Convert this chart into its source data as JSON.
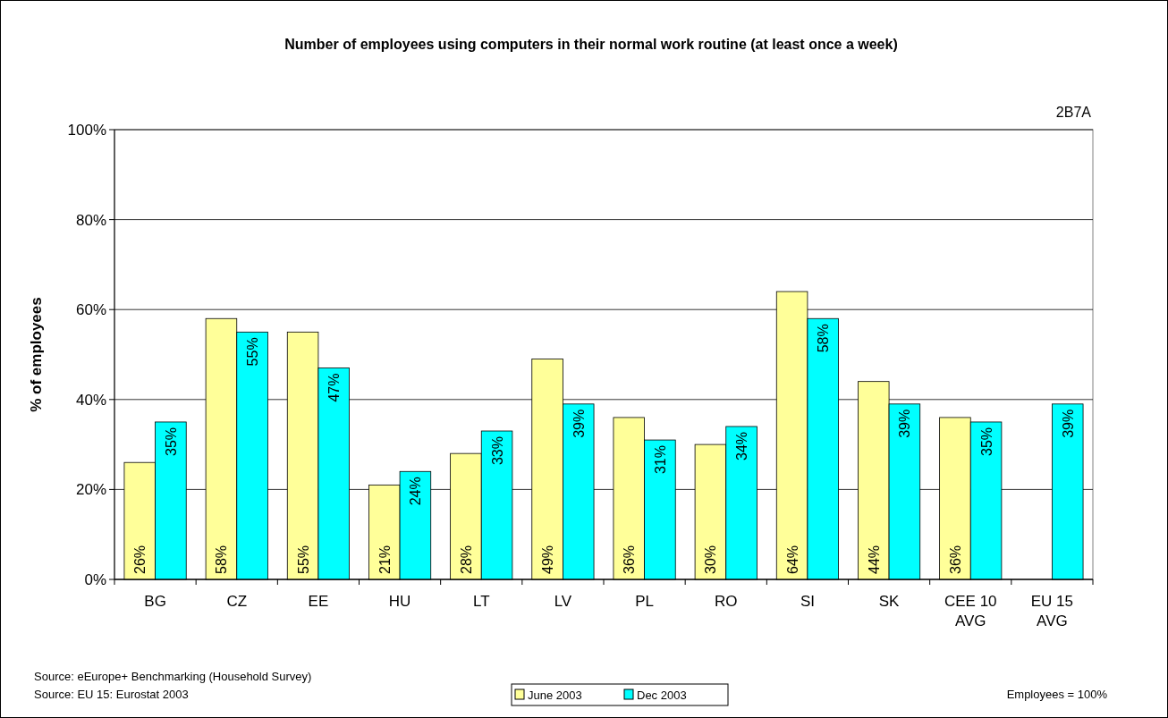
{
  "chart_data": {
    "type": "bar",
    "title": "Number of employees using computers in their normal work routine (at least once a week)",
    "ylabel": "% of employees",
    "categories": [
      "BG",
      "CZ",
      "EE",
      "HU",
      "LT",
      "LV",
      "PL",
      "RO",
      "SI",
      "SK",
      "CEE 10 AVG",
      "EU 15 AVG"
    ],
    "series": [
      {
        "name": "June 2003",
        "color": "#ffff99",
        "values": [
          26,
          58,
          55,
          21,
          28,
          49,
          36,
          30,
          64,
          44,
          36,
          null
        ],
        "value_labels": [
          "26%",
          "58%",
          "55%",
          "21%",
          "28%",
          "49%",
          "36%",
          "30%",
          "64%",
          "44%",
          "36%",
          null
        ]
      },
      {
        "name": "Dec 2003",
        "color": "#00ffff",
        "values": [
          35,
          55,
          47,
          24,
          33,
          39,
          31,
          34,
          58,
          39,
          35,
          39
        ],
        "value_labels": [
          "35%",
          "55%",
          "47%",
          "24%",
          "33%",
          "39%",
          "31%",
          "34%",
          "58%",
          "39%",
          "35%",
          "39%"
        ]
      }
    ],
    "ylim": [
      0,
      100
    ],
    "yticks": [
      {
        "value": 0,
        "label": "0%"
      },
      {
        "value": 20,
        "label": "20%"
      },
      {
        "value": 40,
        "label": "40%"
      },
      {
        "value": 60,
        "label": "60%"
      },
      {
        "value": 80,
        "label": "80%"
      },
      {
        "value": 100,
        "label": "100%"
      }
    ],
    "grid": "y",
    "legend": "bottom",
    "annotations": [
      "2B7A",
      "Source: eEurope+ Benchmarking (Household Survey)",
      "Source: EU 15: Eurostat 2003",
      "Employees  = 100%"
    ]
  }
}
